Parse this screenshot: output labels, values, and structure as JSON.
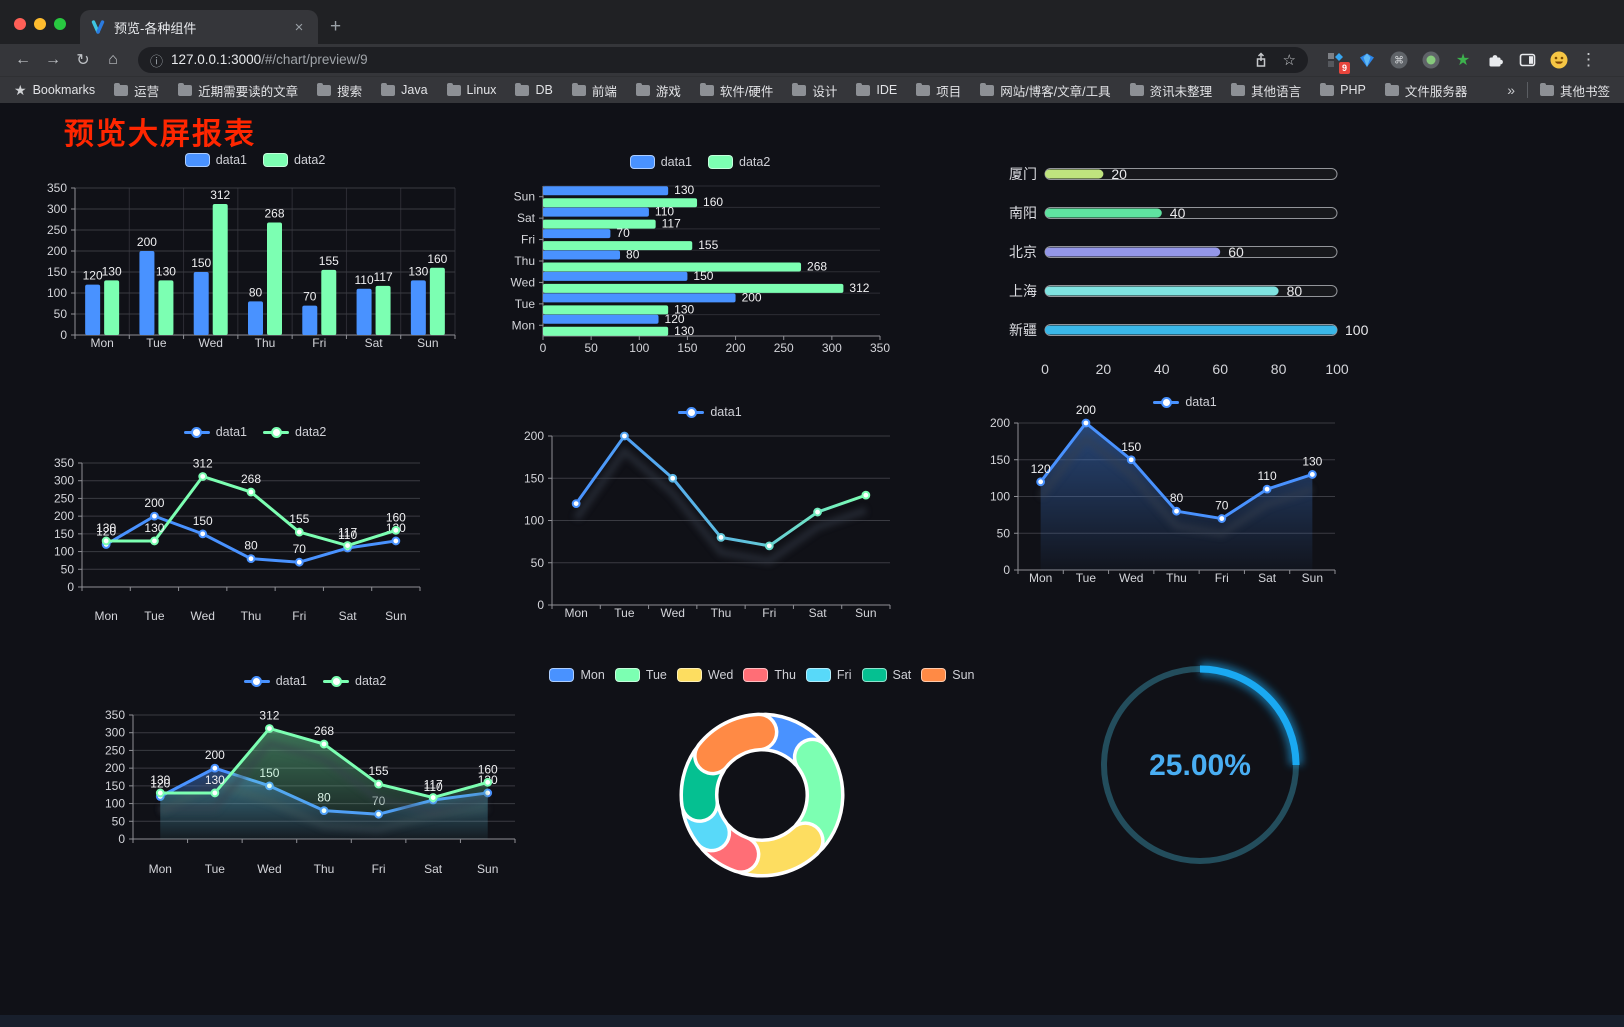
{
  "browser": {
    "window_controls": {
      "close_color": "#ff5f57",
      "minimize_color": "#febc2e",
      "zoom_color": "#28c840"
    },
    "tab": {
      "title": "预览-各种组件"
    },
    "address": {
      "host": "127.0.0.1:3000",
      "path": "/#/chart/preview/9"
    },
    "glyphs": {
      "back": "←",
      "forward": "→",
      "reload": "↻",
      "home": "⌂",
      "info": "ⓘ",
      "star": "☆",
      "close": "×",
      "plus": "+",
      "kebab": "⋮",
      "overflow": "»",
      "cmd": "⌘",
      "green_star": "★"
    },
    "extension_badge": "9",
    "bookmarks_bar": {
      "label": "Bookmarks",
      "folders": [
        "运营",
        "近期需要读的文章",
        "搜索",
        "Java",
        "Linux",
        "DB",
        "前端",
        "游戏",
        "软件/硬件",
        "设计",
        "IDE",
        "项目",
        "网站/博客/文章/工具",
        "资讯未整理",
        "其他语言",
        "PHP",
        "文件服务器"
      ],
      "other": "其他书签"
    }
  },
  "page": {
    "title": "预览大屏报表",
    "title_color": "#ff2600"
  },
  "chart_data": [
    {
      "id": "bar-grouped",
      "type": "bar",
      "categories": [
        "Mon",
        "Tue",
        "Wed",
        "Thu",
        "Fri",
        "Sat",
        "Sun"
      ],
      "series": [
        {
          "name": "data1",
          "color": "#4992ff",
          "values": [
            120,
            200,
            150,
            80,
            70,
            110,
            130
          ]
        },
        {
          "name": "data2",
          "color": "#7cffb2",
          "values": [
            130,
            130,
            312,
            268,
            155,
            117,
            160
          ]
        }
      ],
      "ylim": [
        0,
        350
      ],
      "ytick_step": 50,
      "legend_position": "top",
      "grid": true
    },
    {
      "id": "bar-horizontal",
      "type": "bar",
      "orientation": "horizontal",
      "categories_top_to_bottom": [
        "Sun",
        "Sat",
        "Fri",
        "Thu",
        "Wed",
        "Tue",
        "Mon"
      ],
      "series": [
        {
          "name": "data1",
          "color": "#4992ff",
          "values": [
            130,
            110,
            70,
            80,
            150,
            200,
            120
          ]
        },
        {
          "name": "data2",
          "color": "#7cffb2",
          "values": [
            160,
            117,
            155,
            268,
            312,
            130,
            130
          ]
        }
      ],
      "xlim": [
        0,
        350
      ],
      "xtick_step": 50,
      "legend_position": "top"
    },
    {
      "id": "progress-bars",
      "type": "bar",
      "orientation": "horizontal-progress",
      "categories": [
        "厦门",
        "南阳",
        "北京",
        "上海",
        "新疆"
      ],
      "values": [
        20,
        40,
        60,
        80,
        100
      ],
      "colors": [
        "#bfe37e",
        "#5fe3a1",
        "#9497e8",
        "#7fe3e0",
        "#3ab7e8"
      ],
      "xlim": [
        0,
        100
      ],
      "xticks": [
        0,
        20,
        40,
        60,
        80,
        100
      ]
    },
    {
      "id": "line-two-series",
      "type": "line",
      "categories": [
        "Mon",
        "Tue",
        "Wed",
        "Thu",
        "Fri",
        "Sat",
        "Sun"
      ],
      "series": [
        {
          "name": "data1",
          "color": "#4992ff",
          "values": [
            120,
            200,
            150,
            80,
            70,
            110,
            130
          ]
        },
        {
          "name": "data2",
          "color": "#7cffb2",
          "values": [
            130,
            130,
            312,
            268,
            155,
            117,
            160
          ]
        }
      ],
      "ylim": [
        0,
        350
      ],
      "ytick_step": 50,
      "show_labels": true,
      "legend_position": "top"
    },
    {
      "id": "line-gradient",
      "type": "line",
      "categories": [
        "Mon",
        "Tue",
        "Wed",
        "Thu",
        "Fri",
        "Sat",
        "Sun"
      ],
      "series": [
        {
          "name": "data1",
          "color": "#4992ff",
          "color_end": "#7cffb2",
          "values": [
            120,
            200,
            150,
            80,
            70,
            110,
            130
          ]
        }
      ],
      "ylim": [
        0,
        200
      ],
      "ytick_step": 50,
      "show_labels": false,
      "legend_position": "top"
    },
    {
      "id": "line-area-single",
      "type": "area",
      "categories": [
        "Mon",
        "Tue",
        "Wed",
        "Thu",
        "Fri",
        "Sat",
        "Sun"
      ],
      "series": [
        {
          "name": "data1",
          "color": "#4992ff",
          "values": [
            120,
            200,
            150,
            80,
            70,
            110,
            130
          ]
        }
      ],
      "ylim": [
        0,
        200
      ],
      "ytick_step": 50,
      "show_labels": true,
      "legend_position": "top"
    },
    {
      "id": "area-two-series",
      "type": "area",
      "categories": [
        "Mon",
        "Tue",
        "Wed",
        "Thu",
        "Fri",
        "Sat",
        "Sun"
      ],
      "series": [
        {
          "name": "data1",
          "color": "#4992ff",
          "values": [
            120,
            200,
            150,
            80,
            70,
            110,
            130
          ]
        },
        {
          "name": "data2",
          "color": "#7cffb2",
          "values": [
            130,
            130,
            312,
            268,
            155,
            117,
            160
          ]
        }
      ],
      "ylim": [
        0,
        350
      ],
      "ytick_step": 50,
      "show_labels": true,
      "legend_position": "top"
    },
    {
      "id": "donut",
      "type": "pie",
      "categories": [
        "Mon",
        "Tue",
        "Wed",
        "Thu",
        "Fri",
        "Sat",
        "Sun"
      ],
      "values": [
        120,
        200,
        150,
        80,
        70,
        110,
        130
      ],
      "colors": [
        "#4992ff",
        "#7cffb2",
        "#fddd60",
        "#ff6e76",
        "#58d9f9",
        "#05c091",
        "#ff8a45"
      ],
      "inner_radius_ratio": 0.58,
      "border_color": "#ffffff",
      "legend_position": "top"
    },
    {
      "id": "gauge",
      "type": "gauge",
      "value": 25,
      "label": "25.00%",
      "progress_color": "#1aa9f2",
      "track_color": "#234d5c",
      "text_color": "#49aef3"
    }
  ]
}
